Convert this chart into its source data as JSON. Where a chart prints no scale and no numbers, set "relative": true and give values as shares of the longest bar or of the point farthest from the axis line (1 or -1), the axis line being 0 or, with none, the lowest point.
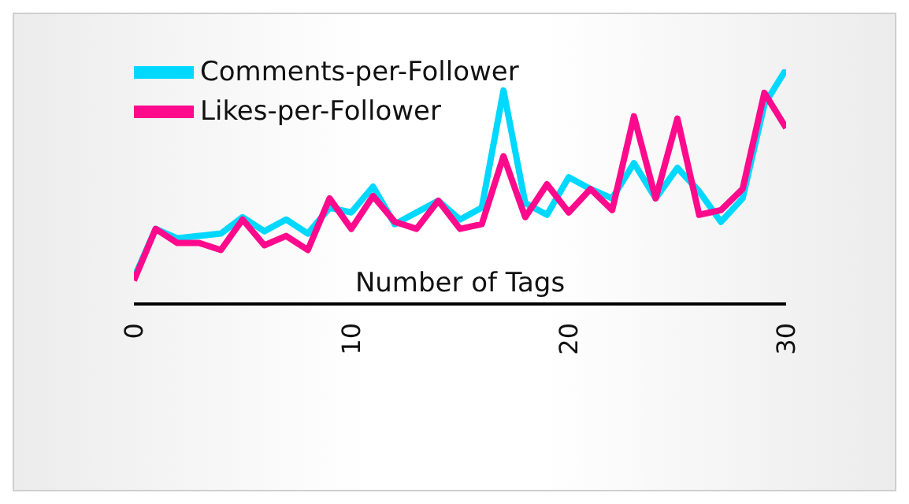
{
  "chart_data": {
    "type": "line",
    "xlabel": "Number of Tags",
    "relative": true,
    "x": [
      0,
      1,
      2,
      3,
      4,
      5,
      6,
      7,
      8,
      9,
      10,
      11,
      12,
      13,
      14,
      15,
      16,
      17,
      18,
      19,
      20,
      21,
      22,
      23,
      24,
      25,
      26,
      27,
      28,
      29,
      30
    ],
    "xlim": [
      0,
      30
    ],
    "xticks": [
      0,
      10,
      20,
      30
    ],
    "series": [
      {
        "name": "Comments-per-Follower",
        "color": "#00d8ff",
        "values": [
          0.11,
          0.32,
          0.28,
          0.29,
          0.3,
          0.37,
          0.31,
          0.36,
          0.3,
          0.41,
          0.39,
          0.5,
          0.34,
          0.39,
          0.44,
          0.36,
          0.41,
          0.91,
          0.43,
          0.38,
          0.54,
          0.49,
          0.45,
          0.6,
          0.45,
          0.58,
          0.48,
          0.35,
          0.45,
          0.85,
          1
        ]
      },
      {
        "name": "Likes-per-Follower",
        "color": "#ff0a8c",
        "values": [
          0.1,
          0.32,
          0.26,
          0.26,
          0.23,
          0.36,
          0.25,
          0.29,
          0.23,
          0.45,
          0.32,
          0.46,
          0.35,
          0.32,
          0.44,
          0.32,
          0.34,
          0.63,
          0.37,
          0.51,
          0.39,
          0.49,
          0.4,
          0.8,
          0.45,
          0.79,
          0.38,
          0.4,
          0.49,
          0.9,
          0.75
        ]
      }
    ],
    "grid": false,
    "legend": "top left",
    "marker": "none",
    "line_style": "solid"
  }
}
